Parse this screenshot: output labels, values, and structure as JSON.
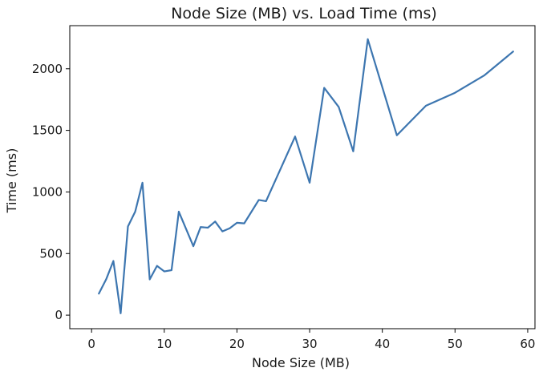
{
  "chart_data": {
    "type": "line",
    "title": "Node Size (MB) vs. Load Time (ms)",
    "xlabel": "Node Size (MB)",
    "ylabel": "Time (ms)",
    "xlim": [
      -3,
      61
    ],
    "ylim": [
      -110,
      2350
    ],
    "xticks": [
      0,
      10,
      20,
      30,
      40,
      50,
      60
    ],
    "yticks": [
      0,
      500,
      1000,
      1500,
      2000
    ],
    "grid": false,
    "line_color": "#3d76b0",
    "series": [
      {
        "x": [
          1,
          2,
          3,
          4,
          5,
          6,
          7,
          8,
          9,
          10,
          11,
          12,
          14,
          15,
          16,
          17,
          18,
          19,
          20,
          21,
          23,
          24,
          28,
          30,
          32,
          34,
          36,
          38,
          42,
          46,
          50,
          54,
          58
        ],
        "y": [
          175,
          290,
          440,
          15,
          720,
          840,
          1075,
          290,
          400,
          355,
          365,
          840,
          560,
          715,
          710,
          760,
          680,
          705,
          750,
          745,
          935,
          925,
          1450,
          1075,
          1845,
          1690,
          1330,
          2240,
          1460,
          1700,
          1805,
          1945,
          2140
        ]
      }
    ]
  }
}
